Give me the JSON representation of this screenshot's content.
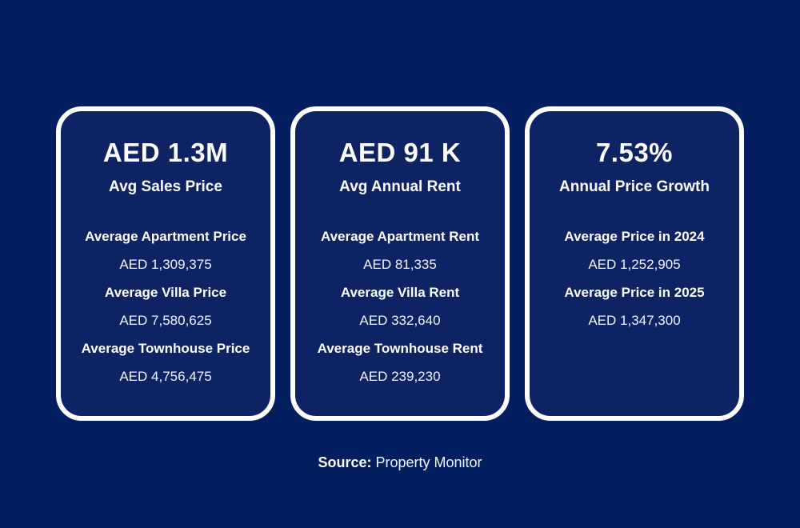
{
  "page": {
    "background_color": "#021E5E",
    "card_background_color": "#0D2363",
    "card_border_color": "#FFFFFF",
    "text_color": "#FFFFFF"
  },
  "cards": [
    {
      "headline": "AED 1.3M",
      "subtitle": "Avg Sales Price",
      "items": [
        {
          "label": "Average Apartment Price",
          "value": "AED 1,309,375"
        },
        {
          "label": "Average Villa Price",
          "value": "AED 7,580,625"
        },
        {
          "label": "Average Townhouse Price",
          "value": "AED 4,756,475"
        }
      ]
    },
    {
      "headline": "AED 91 K",
      "subtitle": "Avg Annual Rent",
      "items": [
        {
          "label": "Average Apartment Rent",
          "value": "AED 81,335"
        },
        {
          "label": "Average Villa Rent",
          "value": "AED 332,640"
        },
        {
          "label": "Average Townhouse Rent",
          "value": "AED 239,230"
        }
      ]
    },
    {
      "headline": "7.53%",
      "subtitle": "Annual Price Growth",
      "items": [
        {
          "label": "Average Price in 2024",
          "value": "AED 1,252,905"
        },
        {
          "label": "Average Price in 2025",
          "value": "AED 1,347,300"
        }
      ]
    }
  ],
  "footer": {
    "source_label": "Source:",
    "source_value": " Property Monitor"
  },
  "chart_data": [
    {
      "type": "table",
      "title": "AED 1.3M — Avg Sales Price",
      "categories": [
        "Average Apartment Price",
        "Average Villa Price",
        "Average Townhouse Price"
      ],
      "values": [
        1309375,
        7580625,
        4756475
      ],
      "unit": "AED"
    },
    {
      "type": "table",
      "title": "AED 91 K — Avg Annual Rent",
      "categories": [
        "Average Apartment Rent",
        "Average Villa Rent",
        "Average Townhouse Rent"
      ],
      "values": [
        81335,
        332640,
        239230
      ],
      "unit": "AED"
    },
    {
      "type": "table",
      "title": "7.53% — Annual Price Growth",
      "categories": [
        "Average Price in 2024",
        "Average Price in 2025"
      ],
      "values": [
        1252905,
        1347300
      ],
      "unit": "AED"
    }
  ]
}
